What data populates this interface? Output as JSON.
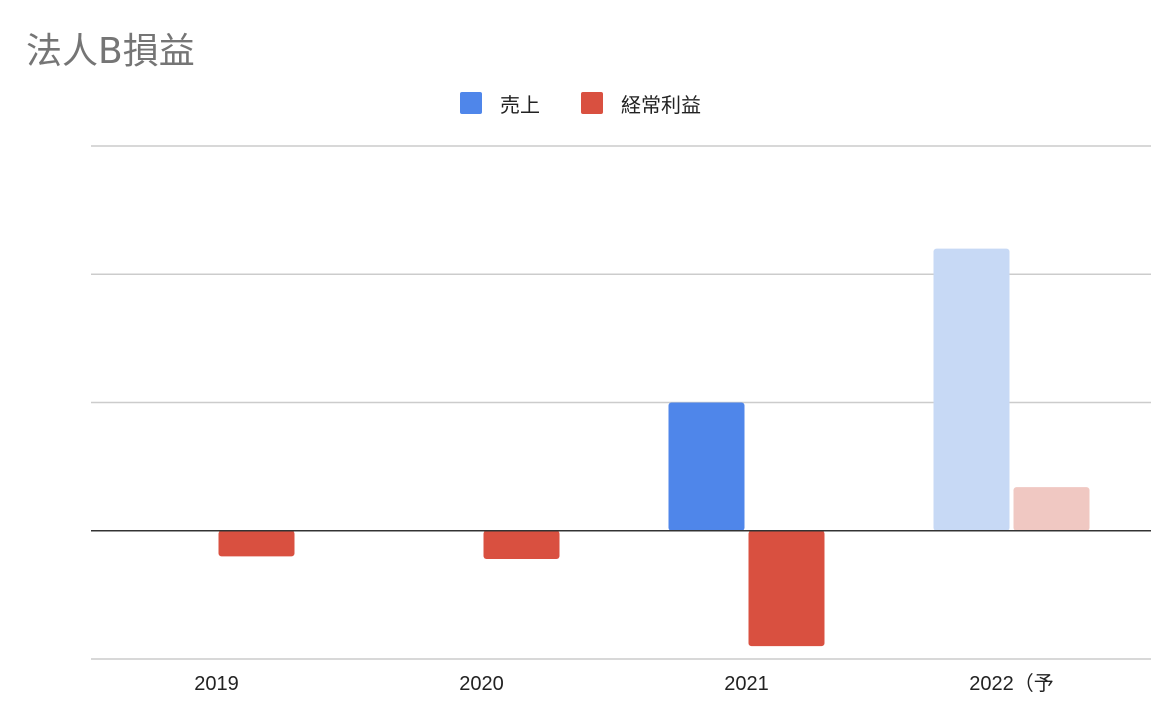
{
  "chart_data": {
    "type": "bar",
    "title": "法人B損益",
    "xlabel": "",
    "ylabel": "",
    "categories": [
      "2019",
      "2020",
      "2021",
      "2022（予"
    ],
    "series": [
      {
        "name": "売上",
        "color": "#4f86ea",
        "faded_color": "#c7d9f5",
        "values": [
          0,
          0,
          1.0,
          2.2
        ]
      },
      {
        "name": "経常利益",
        "color": "#d95040",
        "faded_color": "#f0c8c2",
        "values": [
          -0.2,
          -0.22,
          -0.9,
          0.34
        ]
      }
    ],
    "faded_categories": [
      "2022（予"
    ],
    "ylim": [
      -1,
      3
    ],
    "gridlines": [
      -1,
      0,
      1,
      2,
      3
    ],
    "grid": true,
    "y_tick_labels": false,
    "legend_position": "top-center"
  }
}
